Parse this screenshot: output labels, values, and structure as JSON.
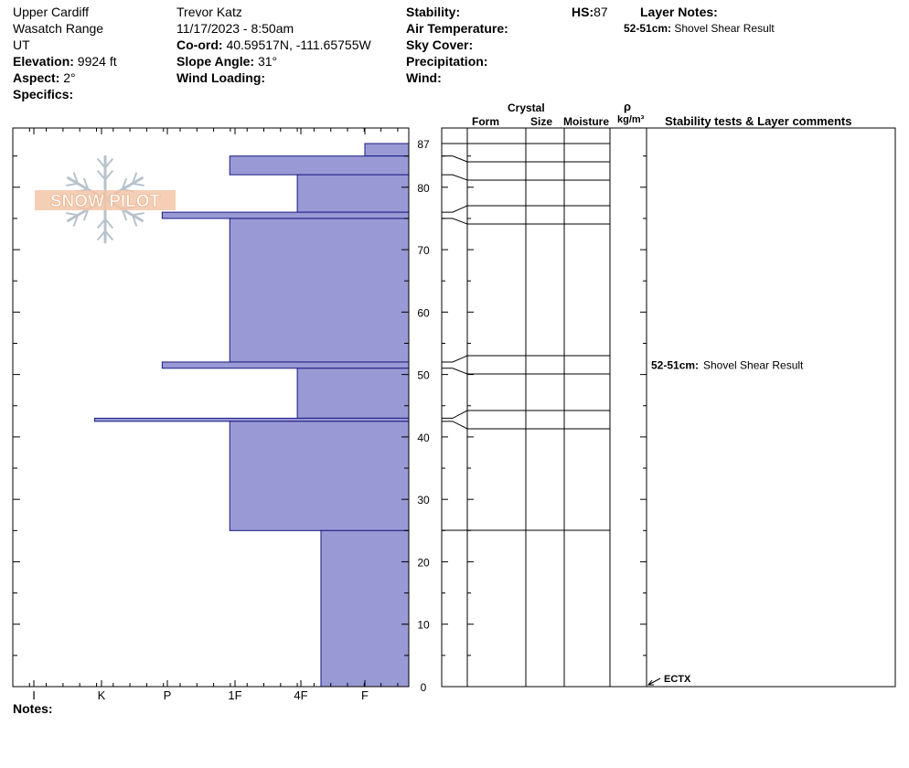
{
  "header": {
    "location": "Upper Cardiff",
    "range": "Wasatch Range",
    "state": "UT",
    "elevation_label": "Elevation:",
    "elevation_value": "9924 ft",
    "aspect_label": "Aspect:",
    "aspect_value": "2°",
    "specifics_label": "Specifics:",
    "observer": "Trevor Katz",
    "datetime": "11/17/2023 - 8:50am",
    "coord_label": "Co-ord:",
    "coord_value": "40.59517N, -111.65755W",
    "slope_label": "Slope Angle:",
    "slope_value": "31°",
    "wind_loading_label": "Wind Loading:",
    "stability_label": "Stability:",
    "air_temp_label": "Air Temperature:",
    "sky_cover_label": "Sky Cover:",
    "precip_label": "Precipitation:",
    "wind_label": "Wind:",
    "hs_label": "HS:",
    "hs_value": "87",
    "layer_notes_label": "Layer Notes:",
    "layer_note_depth": "52-51cm:",
    "layer_note_text": "Shovel Shear Result"
  },
  "logo": {
    "text": "SNOW PILOT"
  },
  "columns": {
    "crystal": "Crystal",
    "form": "Form",
    "size": "Size",
    "moisture": "Moisture",
    "rho": "ρ",
    "density_unit": "kg/m³",
    "comments": "Stability tests & Layer comments"
  },
  "notes_label": "Notes:",
  "chart_data": {
    "type": "bar",
    "orientation": "horizontal",
    "x_ticks": [
      "I",
      "K",
      "P",
      "1F",
      "4F",
      "F"
    ],
    "y_ticks": [
      87,
      80,
      70,
      60,
      50,
      40,
      30,
      20,
      10,
      0
    ],
    "ylim": [
      0,
      87
    ],
    "layers": [
      {
        "top": 87,
        "bottom": 85,
        "hardness": 0.65
      },
      {
        "top": 85,
        "bottom": 82,
        "hardness": 2.65
      },
      {
        "top": 82,
        "bottom": 76,
        "hardness": 1.65
      },
      {
        "top": 76,
        "bottom": 75,
        "hardness": 3.65
      },
      {
        "top": 75,
        "bottom": 52,
        "hardness": 2.65
      },
      {
        "top": 52,
        "bottom": 51,
        "hardness": 3.65
      },
      {
        "top": 51,
        "bottom": 43,
        "hardness": 1.65
      },
      {
        "top": 43,
        "bottom": 42.5,
        "hardness": 4.65
      },
      {
        "top": 42.5,
        "bottom": 25,
        "hardness": 2.65
      },
      {
        "top": 25,
        "bottom": 0,
        "hardness": 1.3
      }
    ],
    "boundaries": [
      85,
      82,
      76,
      75,
      52,
      51,
      43,
      42.5,
      25
    ],
    "bar_color": "#9999d6",
    "annotations": [
      {
        "depth": 51.5,
        "label_depth": "52-51cm:",
        "label": "Shovel Shear Result"
      }
    ],
    "tests": [
      {
        "depth": 0,
        "label": "ECTX"
      }
    ]
  }
}
